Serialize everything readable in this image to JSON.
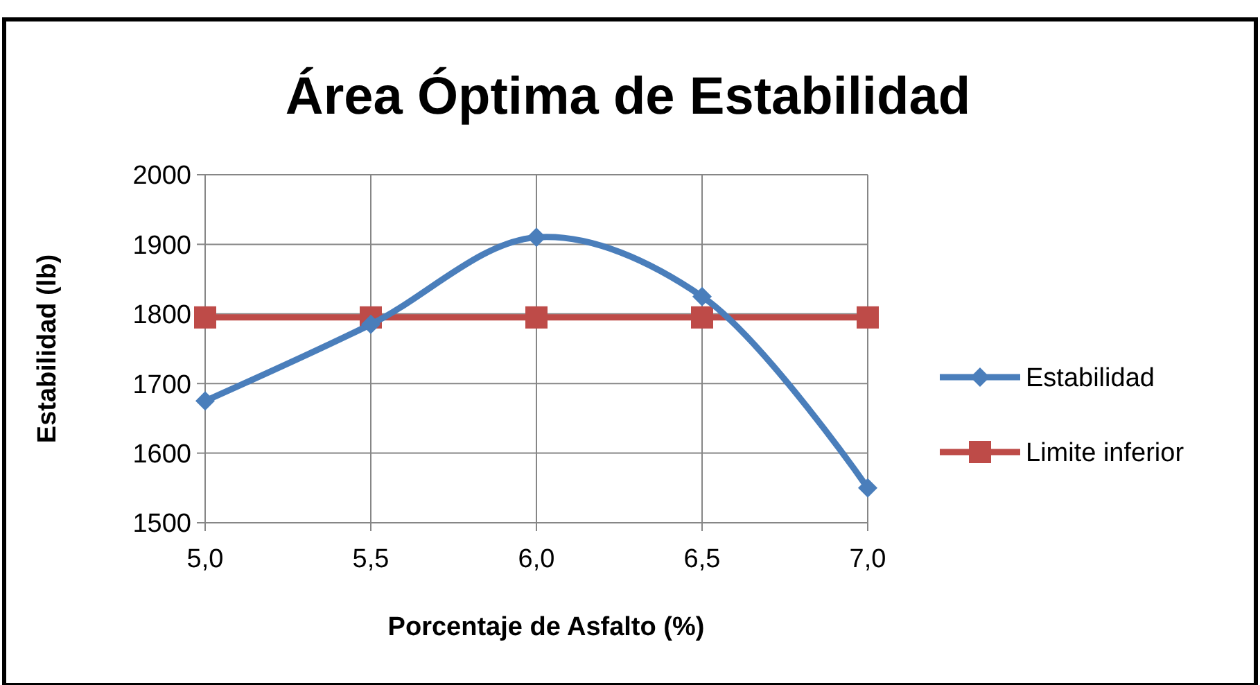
{
  "chart_data": {
    "type": "line",
    "title": "Área Óptima de Estabilidad",
    "xlabel": "Porcentaje de Asfalto (%)",
    "ylabel": "Estabilidad (lb)",
    "x": [
      5,
      5.5,
      6,
      6.5,
      7
    ],
    "series": [
      {
        "name": "Estabilidad",
        "color": "#4a7ebb",
        "marker": "diamond",
        "values": [
          1675,
          1785,
          1910,
          1825,
          1550
        ]
      },
      {
        "name": "Limite inferior",
        "color": "#be4b48",
        "marker": "square",
        "values": [
          1795,
          1795,
          1795,
          1795,
          1795
        ]
      }
    ],
    "xlim": [
      5,
      7
    ],
    "xticks": [
      {
        "value": 5,
        "label": "5,0"
      },
      {
        "value": 5.5,
        "label": "5,5"
      },
      {
        "value": 6,
        "label": "6,0"
      },
      {
        "value": 6.5,
        "label": "6,5"
      },
      {
        "value": 7,
        "label": "7,0"
      }
    ],
    "ylim": [
      1500,
      2000
    ],
    "yticks": [
      1500,
      1600,
      1700,
      1800,
      1900,
      2000
    ],
    "grid": true,
    "legend": "right",
    "line_style": "solid"
  }
}
